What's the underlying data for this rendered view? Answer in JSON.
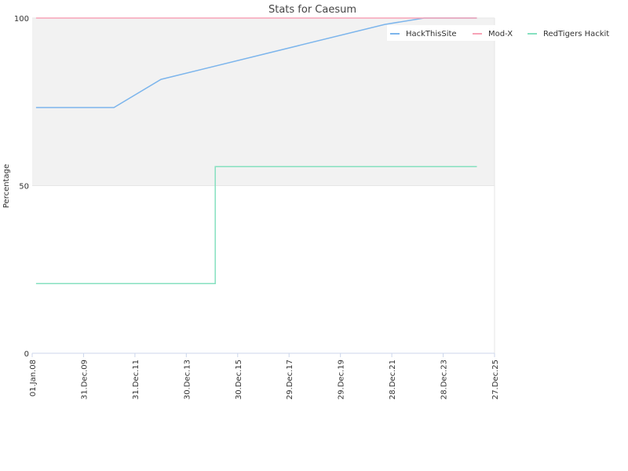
{
  "chart_data": {
    "type": "line",
    "title": "Stats for Caesum",
    "y_label": "Percentage",
    "xlim": [
      "2008-01-01",
      "2025-12-27"
    ],
    "xticks": [
      {
        "value": "2008-01-01",
        "label": "01.Jan.08"
      },
      {
        "value": "2009-12-31",
        "label": "31.Dec.09"
      },
      {
        "value": "2011-12-31",
        "label": "31.Dec.11"
      },
      {
        "value": "2013-12-30",
        "label": "30.Dec.13"
      },
      {
        "value": "2015-12-30",
        "label": "30.Dec.15"
      },
      {
        "value": "2017-12-29",
        "label": "29.Dec.17"
      },
      {
        "value": "2019-12-29",
        "label": "29.Dec.19"
      },
      {
        "value": "2021-12-28",
        "label": "28.Dec.21"
      },
      {
        "value": "2023-12-28",
        "label": "28.Dec.23"
      },
      {
        "value": "2025-12-27",
        "label": "27.Dec.25"
      }
    ],
    "ylim": [
      0,
      100
    ],
    "yticks": [
      0,
      50,
      100
    ],
    "bands": [
      {
        "from": 50,
        "to": 100,
        "color": "#f2f2f2"
      }
    ],
    "legend": "top-right",
    "series": [
      {
        "name": "HackThisSite",
        "color": "#7cb5ec",
        "x": [
          "2008-02-25",
          "2011-03-07",
          "2013-01-05",
          "2021-09-20",
          "2023-04-01",
          "2025-04-20"
        ],
        "values": [
          73.3,
          73.3,
          81.7,
          98.1,
          100,
          100
        ]
      },
      {
        "name": "Mod-X",
        "color": "#f7a3b7",
        "x": [
          "2008-02-25",
          "2025-04-20"
        ],
        "values": [
          100,
          100
        ]
      },
      {
        "name": "RedTigers Hackit",
        "color": "#86e0c0",
        "x": [
          "2008-02-25",
          "2015-02-14",
          "2015-02-14",
          "2025-04-20"
        ],
        "values": [
          20.8,
          20.8,
          55.7,
          55.7
        ]
      }
    ]
  }
}
